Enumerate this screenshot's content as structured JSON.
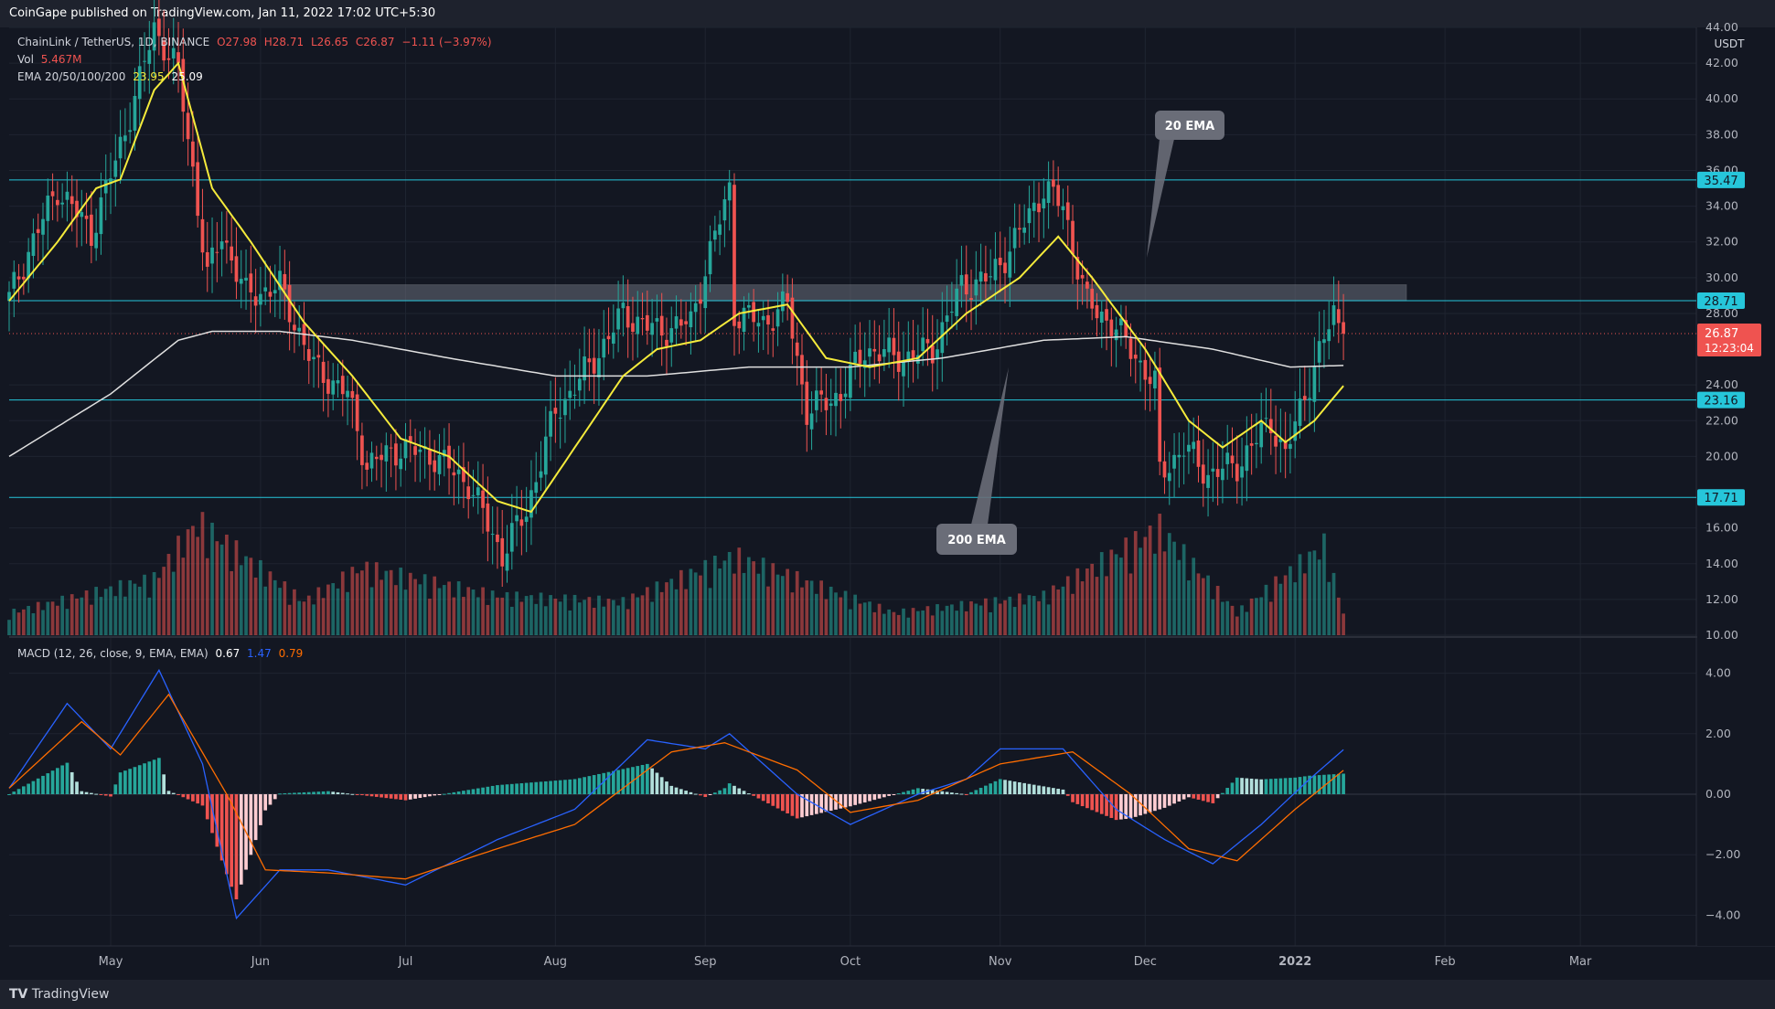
{
  "header": {
    "published": "CoinGape published on TradingView.com, Jan 11, 2022 17:02 UTC+5:30"
  },
  "footer": {
    "brand": "TradingView",
    "logo_icon": "tradingview-logo-icon"
  },
  "legend": {
    "symbol": "ChainLink / TetherUS, 1D, BINANCE",
    "ohlc": {
      "o": "O27.98",
      "h": "H28.71",
      "l": "L26.65",
      "c": "C26.87",
      "chg": "−1.11 (−3.97%)"
    },
    "vol_label": "Vol",
    "vol_value": "5.467M",
    "ema_label": "EMA 20/50/100/200",
    "ema20": "23.95",
    "ema200": "25.09",
    "macd_label": "MACD (12, 26, close, 9, EMA, EMA)",
    "macd_hist": "0.67",
    "macd_line": "1.47",
    "macd_signal": "0.79"
  },
  "price_axis": {
    "unit": "USDT",
    "ticks": [
      "44.00",
      "42.00",
      "40.00",
      "38.00",
      "36.00",
      "34.00",
      "32.00",
      "30.00",
      "28.00",
      "24.00",
      "22.00",
      "20.00",
      "16.00",
      "14.00",
      "12.00",
      "10.00"
    ]
  },
  "price_badges": [
    {
      "label": "35.47",
      "value": 35.47,
      "color": "#26c6da"
    },
    {
      "label": "28.71",
      "value": 28.71,
      "color": "#26c6da"
    },
    {
      "label": "23.16",
      "value": 23.16,
      "color": "#26c6da"
    },
    {
      "label": "17.71",
      "value": 17.71,
      "color": "#26c6da"
    }
  ],
  "last_price": {
    "price": "26.87",
    "value": 26.87,
    "countdown": "12:23:04",
    "color": "#ef5350"
  },
  "macd_axis": {
    "ticks": [
      {
        "label": "4.00",
        "v": 4
      },
      {
        "label": "2.00",
        "v": 2
      },
      {
        "label": "0.00",
        "v": 0
      },
      {
        "label": "−2.00",
        "v": -2
      },
      {
        "label": "−4.00",
        "v": -4
      }
    ]
  },
  "time_axis": [
    "May",
    "Jun",
    "Jul",
    "Aug",
    "Sep",
    "Oct",
    "Nov",
    "Dec",
    "2022",
    "Feb",
    "Mar"
  ],
  "annotations": [
    {
      "label": "20 EMA"
    },
    {
      "label": "200 EMA"
    }
  ],
  "colors": {
    "up": "#26a69a",
    "down": "#ef5350",
    "ema20": "#f5eb3b",
    "ema200": "#e0e0e0",
    "macd": "#2962ff",
    "signal": "#ff6d00",
    "zone": "#7a7f8c",
    "level": "#26c6da"
  },
  "chart_data": {
    "type": "candlestick",
    "symbol": "ChainLink / TetherUS",
    "interval": "1D",
    "exchange": "BINANCE",
    "last_close": 26.87,
    "horizontal_levels": [
      35.47,
      28.71,
      23.16,
      17.71
    ],
    "resistance_zone": [
      28.71,
      29.6
    ],
    "price_path": [
      [
        "2021-04-10",
        28.8
      ],
      [
        "2021-04-14",
        31.5
      ],
      [
        "2021-04-20",
        35.0
      ],
      [
        "2021-04-27",
        32.5
      ],
      [
        "2021-05-02",
        36.5
      ],
      [
        "2021-05-07",
        41.0
      ],
      [
        "2021-05-10",
        44.0
      ],
      [
        "2021-05-15",
        41.5
      ],
      [
        "2021-05-18",
        36.0
      ],
      [
        "2021-05-21",
        30.0
      ],
      [
        "2021-05-24",
        32.5
      ],
      [
        "2021-05-29",
        29.0
      ],
      [
        "2021-06-05",
        29.5
      ],
      [
        "2021-06-12",
        25.0
      ],
      [
        "2021-06-19",
        23.5
      ],
      [
        "2021-06-23",
        19.5
      ],
      [
        "2021-06-30",
        20.5
      ],
      [
        "2021-07-07",
        20.0
      ],
      [
        "2021-07-14",
        18.5
      ],
      [
        "2021-07-21",
        14.5
      ],
      [
        "2021-07-26",
        17.0
      ],
      [
        "2021-08-01",
        22.5
      ],
      [
        "2021-08-08",
        25.0
      ],
      [
        "2021-08-15",
        28.0
      ],
      [
        "2021-08-22",
        27.0
      ],
      [
        "2021-08-29",
        27.5
      ],
      [
        "2021-09-01",
        30.5
      ],
      [
        "2021-09-06",
        35.0
      ],
      [
        "2021-09-07",
        28.0
      ],
      [
        "2021-09-13",
        27.5
      ],
      [
        "2021-09-18",
        28.5
      ],
      [
        "2021-09-22",
        22.5
      ],
      [
        "2021-09-29",
        23.5
      ],
      [
        "2021-10-04",
        26.0
      ],
      [
        "2021-10-12",
        25.5
      ],
      [
        "2021-10-18",
        26.0
      ],
      [
        "2021-10-24",
        29.5
      ],
      [
        "2021-10-30",
        30.0
      ],
      [
        "2021-11-05",
        32.5
      ],
      [
        "2021-11-10",
        35.0
      ],
      [
        "2021-11-14",
        34.0
      ],
      [
        "2021-11-19",
        28.5
      ],
      [
        "2021-11-24",
        27.5
      ],
      [
        "2021-11-28",
        26.0
      ],
      [
        "2021-12-03",
        24.0
      ],
      [
        "2021-12-04",
        19.0
      ],
      [
        "2021-12-09",
        20.5
      ],
      [
        "2021-12-14",
        19.0
      ],
      [
        "2021-12-20",
        19.5
      ],
      [
        "2021-12-27",
        22.0
      ],
      [
        "2021-12-30",
        20.0
      ],
      [
        "2022-01-03",
        23.5
      ],
      [
        "2022-01-07",
        26.5
      ],
      [
        "2022-01-09",
        28.0
      ],
      [
        "2022-01-11",
        26.87
      ]
    ],
    "ema20_path": [
      [
        "2021-04-10",
        28.7
      ],
      [
        "2021-04-20",
        32.0
      ],
      [
        "2021-04-28",
        35.0
      ],
      [
        "2021-05-03",
        35.5
      ],
      [
        "2021-05-10",
        40.5
      ],
      [
        "2021-05-15",
        42.0
      ],
      [
        "2021-05-22",
        35.0
      ],
      [
        "2021-05-30",
        32.0
      ],
      [
        "2021-06-10",
        27.5
      ],
      [
        "2021-06-20",
        24.5
      ],
      [
        "2021-06-30",
        21.0
      ],
      [
        "2021-07-10",
        20.0
      ],
      [
        "2021-07-20",
        17.5
      ],
      [
        "2021-07-27",
        16.9
      ],
      [
        "2021-08-05",
        20.5
      ],
      [
        "2021-08-15",
        24.5
      ],
      [
        "2021-08-22",
        26.0
      ],
      [
        "2021-08-31",
        26.5
      ],
      [
        "2021-09-08",
        28.0
      ],
      [
        "2021-09-18",
        28.5
      ],
      [
        "2021-09-26",
        25.5
      ],
      [
        "2021-10-05",
        25.0
      ],
      [
        "2021-10-15",
        25.5
      ],
      [
        "2021-10-25",
        28.0
      ],
      [
        "2021-11-05",
        30.0
      ],
      [
        "2021-11-13",
        32.3
      ],
      [
        "2021-11-20",
        30.0
      ],
      [
        "2021-12-01",
        26.0
      ],
      [
        "2021-12-10",
        22.0
      ],
      [
        "2021-12-17",
        20.5
      ],
      [
        "2021-12-25",
        22.0
      ],
      [
        "2021-12-30",
        20.8
      ],
      [
        "2022-01-05",
        22.0
      ],
      [
        "2022-01-11",
        23.95
      ]
    ],
    "ema200_path": [
      [
        "2021-04-10",
        20.0
      ],
      [
        "2021-05-01",
        23.5
      ],
      [
        "2021-05-15",
        26.5
      ],
      [
        "2021-05-22",
        27.0
      ],
      [
        "2021-06-05",
        27.0
      ],
      [
        "2021-06-20",
        26.5
      ],
      [
        "2021-07-10",
        25.5
      ],
      [
        "2021-08-01",
        24.5
      ],
      [
        "2021-08-20",
        24.5
      ],
      [
        "2021-09-10",
        25.0
      ],
      [
        "2021-10-01",
        25.0
      ],
      [
        "2021-10-20",
        25.5
      ],
      [
        "2021-11-10",
        26.5
      ],
      [
        "2021-11-27",
        26.7
      ],
      [
        "2021-12-15",
        26.0
      ],
      [
        "2021-12-31",
        25.0
      ],
      [
        "2022-01-11",
        25.09
      ]
    ],
    "volume_profile": [
      [
        "2021-04-10",
        0.2
      ],
      [
        "2021-05-10",
        0.5
      ],
      [
        "2021-05-19",
        1.0
      ],
      [
        "2021-06-10",
        0.3
      ],
      [
        "2021-06-22",
        0.6
      ],
      [
        "2021-07-20",
        0.35
      ],
      [
        "2021-08-15",
        0.3
      ],
      [
        "2021-09-07",
        0.7
      ],
      [
        "2021-10-10",
        0.2
      ],
      [
        "2021-11-10",
        0.35
      ],
      [
        "2021-12-04",
        0.95
      ],
      [
        "2021-12-20",
        0.2
      ],
      [
        "2022-01-07",
        0.8
      ],
      [
        "2022-01-11",
        0.2
      ]
    ],
    "macd_path": [
      [
        "2021-04-10",
        0.2
      ],
      [
        "2021-04-22",
        3.0
      ],
      [
        "2021-05-01",
        1.5
      ],
      [
        "2021-05-11",
        4.1
      ],
      [
        "2021-05-20",
        1.0
      ],
      [
        "2021-05-27",
        -4.1
      ],
      [
        "2021-06-05",
        -2.5
      ],
      [
        "2021-06-15",
        -2.5
      ],
      [
        "2021-07-01",
        -3.0
      ],
      [
        "2021-07-20",
        -1.5
      ],
      [
        "2021-08-05",
        -0.5
      ],
      [
        "2021-08-20",
        1.8
      ],
      [
        "2021-09-01",
        1.5
      ],
      [
        "2021-09-06",
        2.0
      ],
      [
        "2021-09-20",
        0.0
      ],
      [
        "2021-10-01",
        -1.0
      ],
      [
        "2021-10-15",
        0.0
      ],
      [
        "2021-10-25",
        0.5
      ],
      [
        "2021-11-01",
        1.5
      ],
      [
        "2021-11-14",
        1.5
      ],
      [
        "2021-11-25",
        -0.5
      ],
      [
        "2021-12-05",
        -1.5
      ],
      [
        "2021-12-15",
        -2.3
      ],
      [
        "2021-12-25",
        -1.0
      ],
      [
        "2022-01-04",
        0.5
      ],
      [
        "2022-01-11",
        1.47
      ]
    ],
    "signal_path": [
      [
        "2021-04-10",
        0.2
      ],
      [
        "2021-04-25",
        2.4
      ],
      [
        "2021-05-03",
        1.3
      ],
      [
        "2021-05-13",
        3.3
      ],
      [
        "2021-05-25",
        0.0
      ],
      [
        "2021-06-02",
        -2.5
      ],
      [
        "2021-06-15",
        -2.6
      ],
      [
        "2021-07-01",
        -2.8
      ],
      [
        "2021-07-20",
        -1.8
      ],
      [
        "2021-08-05",
        -1.0
      ],
      [
        "2021-08-25",
        1.4
      ],
      [
        "2021-09-05",
        1.7
      ],
      [
        "2021-09-20",
        0.8
      ],
      [
        "2021-10-01",
        -0.6
      ],
      [
        "2021-10-15",
        -0.2
      ],
      [
        "2021-11-01",
        1.0
      ],
      [
        "2021-11-16",
        1.4
      ],
      [
        "2021-11-28",
        0.0
      ],
      [
        "2021-12-10",
        -1.8
      ],
      [
        "2021-12-20",
        -2.2
      ],
      [
        "2022-01-01",
        -0.5
      ],
      [
        "2022-01-11",
        0.79
      ]
    ],
    "ylim": [
      10,
      44
    ],
    "macd_ylim": [
      -4.6,
      5.0
    ],
    "xlim": [
      "2021-04-10",
      "2022-03-25"
    ]
  }
}
